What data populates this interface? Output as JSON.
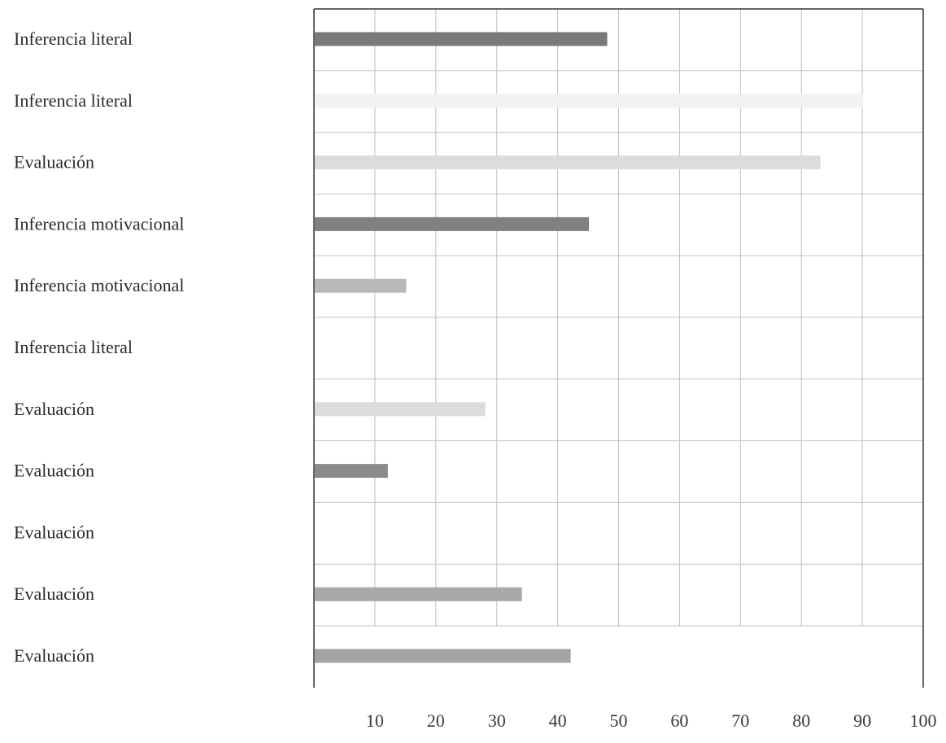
{
  "chart_data": {
    "type": "bar",
    "orientation": "horizontal",
    "categories": [
      "Inferencia literal",
      "Inferencia literal",
      "Evaluación",
      "Inferencia motivacional",
      "Inferencia motivacional",
      "Inferencia literal",
      "Evaluación",
      "Evaluación",
      "Evaluación",
      "Evaluación",
      "Evaluación"
    ],
    "values": [
      48,
      90,
      83,
      45,
      15,
      0,
      28,
      12,
      0,
      34,
      42
    ],
    "bar_colors": [
      "#7a7a7a",
      "#f2f2f2",
      "#dcdcdc",
      "#808080",
      "#b8b8b8",
      "#ffffff",
      "#dcdcdc",
      "#8a8a8a",
      "#f4f4f4",
      "#a8a8a8",
      "#a3a3a3"
    ],
    "x_ticks": [
      10,
      20,
      30,
      40,
      50,
      60,
      70,
      80,
      90,
      100
    ],
    "xlim": [
      0,
      100
    ],
    "grid": true,
    "legend": "none"
  }
}
